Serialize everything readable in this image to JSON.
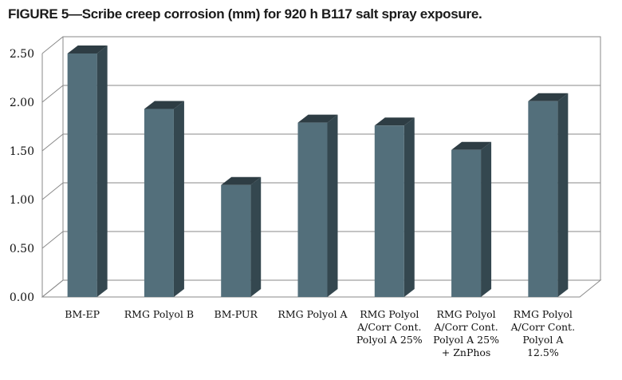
{
  "chart_title": "FIGURE 5—Scribe creep corrosion (mm) for 920 h B117 salt spray exposure.",
  "chart_data": {
    "type": "bar",
    "title": "FIGURE 5—Scribe creep corrosion (mm) for 920 h B117 salt spray exposure.",
    "xlabel": "",
    "ylabel": "",
    "ylim": [
      0,
      2.5
    ],
    "yticks": [
      "0.00",
      "0.50",
      "1.00",
      "1.50",
      "2.00",
      "2.50"
    ],
    "grid": true,
    "legend": "none",
    "categories": [
      [
        "BM-EP"
      ],
      [
        "RMG Polyol B"
      ],
      [
        "BM-PUR"
      ],
      [
        "RMG Polyol A"
      ],
      [
        "RMG Polyol",
        "A/Corr Cont.",
        "Polyol A 25%"
      ],
      [
        "RMG Polyol",
        "A/Corr Cont.",
        "Polyol A 25%",
        "+ ZnPhos"
      ],
      [
        "RMG Polyol",
        "A/Corr Cont.",
        "Polyol A",
        "12.5%"
      ]
    ],
    "values": [
      2.5,
      1.93,
      1.15,
      1.79,
      1.76,
      1.51,
      2.01
    ],
    "colors": {
      "bar_front": "#536f7b",
      "bar_side": "#34474f",
      "bar_top": "#2e3d44"
    }
  }
}
